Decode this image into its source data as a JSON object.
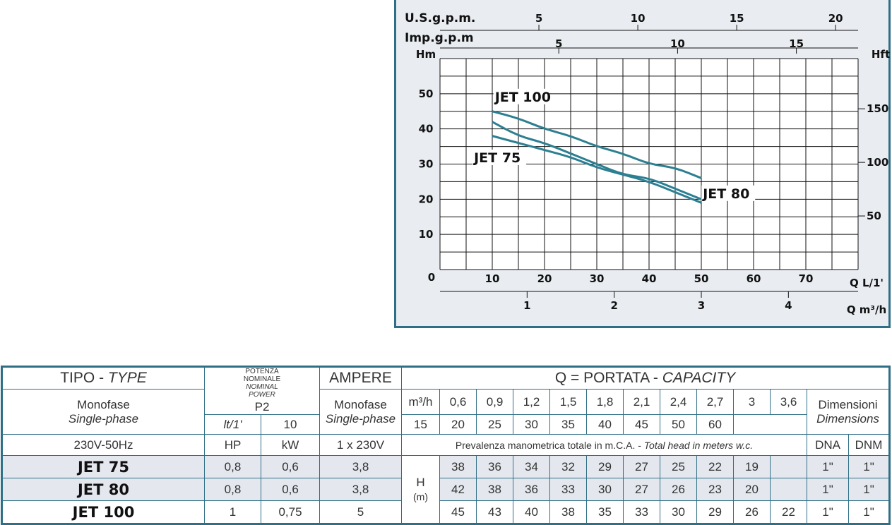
{
  "chart_data": {
    "type": "line",
    "series": [
      {
        "name": "JET 75",
        "points": [
          [
            10,
            38
          ],
          [
            15,
            36
          ],
          [
            20,
            34
          ],
          [
            25,
            32
          ],
          [
            30,
            29
          ],
          [
            35,
            27
          ],
          [
            40,
            25
          ],
          [
            45,
            22
          ],
          [
            50,
            19
          ]
        ]
      },
      {
        "name": "JET 80",
        "points": [
          [
            10,
            42
          ],
          [
            15,
            38
          ],
          [
            20,
            36
          ],
          [
            25,
            33
          ],
          [
            30,
            30
          ],
          [
            35,
            27
          ],
          [
            40,
            26
          ],
          [
            45,
            23
          ],
          [
            50,
            20
          ]
        ]
      },
      {
        "name": "JET 100",
        "points": [
          [
            10,
            45
          ],
          [
            15,
            43
          ],
          [
            20,
            40
          ],
          [
            25,
            38
          ],
          [
            30,
            35
          ],
          [
            35,
            33
          ],
          [
            40,
            30
          ],
          [
            45,
            29
          ],
          [
            50,
            26
          ]
        ]
      }
    ],
    "x_axis": {
      "label": "Q L/1'",
      "ticks": [
        "10",
        "20",
        "30",
        "40",
        "50",
        "60",
        "70"
      ],
      "zero": "0",
      "range": [
        0,
        80
      ]
    },
    "y_axis": {
      "label": "Hm",
      "ticks": [
        "10",
        "20",
        "30",
        "40",
        "50"
      ],
      "range": [
        0,
        60
      ]
    },
    "y_axis_right": {
      "label": "Hft",
      "ticks": [
        "50",
        "100",
        "150"
      ]
    },
    "x_axis_top1": {
      "label": "U.S.g.p.m.",
      "ticks": [
        "5",
        "10",
        "15",
        "20"
      ]
    },
    "x_axis_top2": {
      "label": "Imp.g.p.m",
      "ticks": [
        "5",
        "10",
        "15"
      ]
    },
    "x_axis_bottom2": {
      "label": "Q m³/h",
      "ticks": [
        "1",
        "2",
        "3",
        "4"
      ]
    },
    "curve_color": "#2c7f92",
    "grid": true
  },
  "table": {
    "type_label": "TIPO - ",
    "type_label_it": "TYPE",
    "phase_label": "Monofase",
    "phase_label_it": "Single-phase",
    "power_label_1": "POTENZA",
    "power_label_2": "NOMINALE",
    "power_label_3": "NOMINAL",
    "power_label_4": "POWER",
    "power_code": "P2",
    "ampere_label": "AMPERE",
    "ampere_phase": "Monofase",
    "ampere_phase_it": "Single-phase",
    "capacity_label": "Q = PORTATA - ",
    "capacity_label_it": "CAPACITY",
    "unit_m3h": "m³/h",
    "unit_lt": "lt/1'",
    "m3h_values": [
      "0,6",
      "0,9",
      "1,2",
      "1,5",
      "1,8",
      "2,1",
      "2,4",
      "2,7",
      "3",
      "3,6"
    ],
    "lt_values": [
      "10",
      "15",
      "20",
      "25",
      "30",
      "35",
      "40",
      "45",
      "50",
      "60"
    ],
    "dimensions_label": "Dimensioni",
    "dimensions_label_it": "Dimensions",
    "voltage": "230V-50Hz",
    "hp": "HP",
    "kw": "kW",
    "supply": "1 x 230V",
    "head_note": "Prevalenza manometrica totale in m.C.A. - ",
    "head_note_it": "Total head in meters w.c.",
    "dna": "DNA",
    "dnm": "DNM",
    "h_label": "H",
    "h_unit": "(m)",
    "rows": [
      {
        "model": "JET 75",
        "hp": "0,8",
        "kw": "0,6",
        "amp": "3,8",
        "heads": [
          "38",
          "36",
          "34",
          "32",
          "29",
          "27",
          "25",
          "22",
          "19",
          ""
        ],
        "dna": "1\"",
        "dnm": "1\""
      },
      {
        "model": "JET 80",
        "hp": "0,8",
        "kw": "0,6",
        "amp": "3,8",
        "heads": [
          "42",
          "38",
          "36",
          "33",
          "30",
          "27",
          "26",
          "23",
          "20",
          ""
        ],
        "dna": "1\"",
        "dnm": "1\""
      },
      {
        "model": "JET 100",
        "hp": "1",
        "kw": "0,75",
        "amp": "5",
        "heads": [
          "45",
          "43",
          "40",
          "38",
          "35",
          "33",
          "30",
          "29",
          "26",
          "22"
        ],
        "dna": "1\"",
        "dnm": "1\""
      }
    ]
  }
}
